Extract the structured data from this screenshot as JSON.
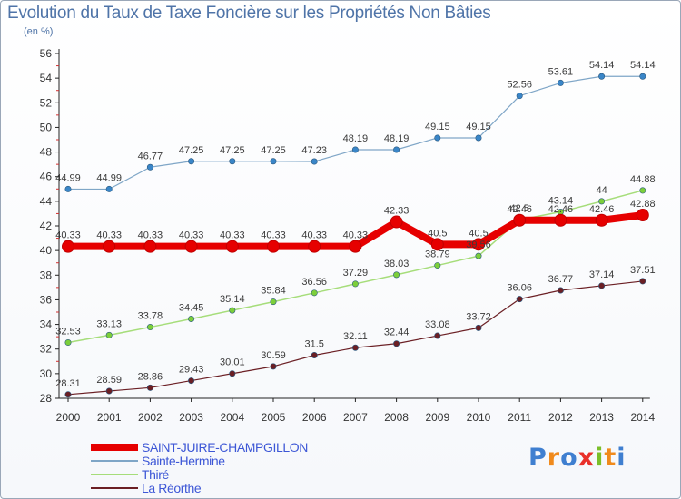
{
  "title": "Evolution du Taux de Taxe Foncière sur les Propriétés Non Bâties",
  "unit": "(en %)",
  "logo": {
    "text": "Proxiti",
    "letter_colors": [
      "#3f7fd0",
      "#f08a1c",
      "#3f7fd0",
      "#e9302a",
      "#7bbf2a",
      "#f08a1c",
      "#3f7fd0"
    ]
  },
  "chart_data": {
    "type": "line",
    "title": "Evolution du Taux de Taxe Foncière sur les Propriétés Non Bâties",
    "ylabel": "(en %)",
    "xlabel": "",
    "x": [
      "2000",
      "2001",
      "2002",
      "2003",
      "2004",
      "2005",
      "2006",
      "2007",
      "2008",
      "2009",
      "2010",
      "2011",
      "2012",
      "2013",
      "2014"
    ],
    "ylim": [
      28,
      56
    ],
    "yticks": [
      28,
      30,
      32,
      34,
      36,
      38,
      40,
      42,
      44,
      46,
      48,
      50,
      52,
      54,
      56
    ],
    "grid": false,
    "legend_position": "bottom-left",
    "series": [
      {
        "name": "La Réorthe",
        "color": "#6b1f24",
        "marker": "#6b1f24",
        "width": 1.2,
        "values": [
          28.31,
          28.59,
          28.86,
          29.43,
          30.01,
          30.59,
          31.5,
          32.11,
          32.44,
          33.08,
          33.72,
          36.06,
          36.77,
          37.14,
          37.51
        ],
        "labels": [
          "28.31",
          "28.59",
          "28.86",
          "29.43",
          "30.01",
          "30.59",
          "31.5",
          "32.11",
          "32.44",
          "33.08",
          "33.72",
          "36.06",
          "36.77",
          "37.14",
          "37.51"
        ]
      },
      {
        "name": "Thiré",
        "color": "#a6dd7a",
        "marker": "#7ccf3a",
        "width": 1.5,
        "values": [
          32.53,
          33.13,
          33.78,
          34.45,
          35.14,
          35.84,
          36.56,
          37.29,
          38.03,
          38.79,
          39.56,
          42.5,
          43.14,
          44,
          44.88
        ],
        "labels": [
          "32.53",
          "33.13",
          "33.78",
          "34.45",
          "35.14",
          "35.84",
          "36.56",
          "37.29",
          "38.03",
          "38.79",
          "39.56",
          "42.5",
          "43.14",
          "44",
          "44.88"
        ]
      },
      {
        "name": "Sainte-Hermine",
        "color": "#7fa6c7",
        "marker": "#3a86c8",
        "width": 1.2,
        "values": [
          44.99,
          44.99,
          46.77,
          47.25,
          47.25,
          47.25,
          47.23,
          48.19,
          48.19,
          49.15,
          49.15,
          52.56,
          53.61,
          54.14,
          54.14
        ],
        "labels": [
          "44.99",
          "44.99",
          "46.77",
          "47.25",
          "47.25",
          "47.25",
          "47.23",
          "48.19",
          "48.19",
          "49.15",
          "49.15",
          "52.56",
          "53.61",
          "54.14",
          "54.14"
        ]
      },
      {
        "name": "SAINT-JUIRE-CHAMPGILLON",
        "color": "#e60000",
        "marker": "#e60000",
        "width": 8,
        "values": [
          40.33,
          40.33,
          40.33,
          40.33,
          40.33,
          40.33,
          40.33,
          40.33,
          42.33,
          40.5,
          40.5,
          42.46,
          42.46,
          42.46,
          42.88
        ],
        "labels": [
          "40.33",
          "40.33",
          "40.33",
          "40.33",
          "40.33",
          "40.33",
          "40.33",
          "40.33",
          "42.33",
          "40.5",
          "40.5",
          "42.46",
          "42.46",
          "42.46",
          "42.88"
        ]
      }
    ],
    "legend_order": [
      "SAINT-JUIRE-CHAMPGILLON",
      "Sainte-Hermine",
      "Thiré",
      "La Réorthe"
    ]
  }
}
